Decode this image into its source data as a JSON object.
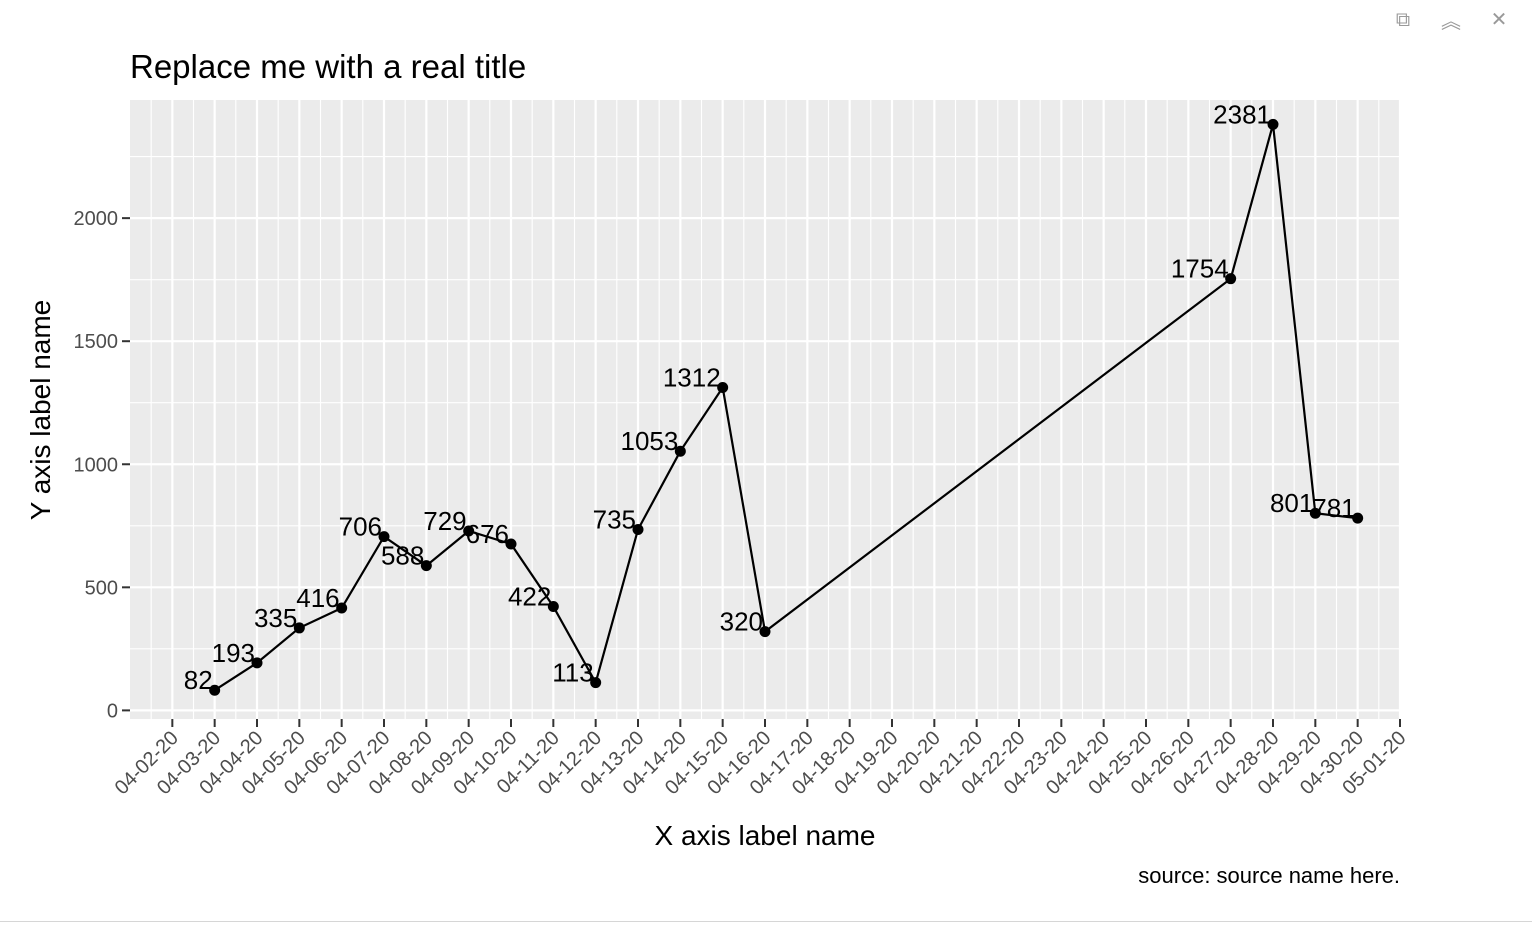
{
  "window": {
    "controls": [
      {
        "name": "popout-icon",
        "glyph": "⧉"
      },
      {
        "name": "collapse-icon",
        "glyph": "︽"
      },
      {
        "name": "close-icon",
        "glyph": "✕"
      }
    ]
  },
  "chart_data": {
    "type": "line",
    "title": "Replace me with a real title",
    "xlabel": "X axis label name",
    "ylabel": "Y axis label name",
    "caption": "source: source name here.",
    "x_ticks": [
      "04-02-20",
      "04-03-20",
      "04-04-20",
      "04-05-20",
      "04-06-20",
      "04-07-20",
      "04-08-20",
      "04-09-20",
      "04-10-20",
      "04-11-20",
      "04-12-20",
      "04-13-20",
      "04-14-20",
      "04-15-20",
      "04-16-20",
      "04-17-20",
      "04-18-20",
      "04-19-20",
      "04-20-20",
      "04-21-20",
      "04-22-20",
      "04-23-20",
      "04-24-20",
      "04-25-20",
      "04-26-20",
      "04-27-20",
      "04-28-20",
      "04-29-20",
      "04-30-20",
      "05-01-20"
    ],
    "y_ticks": [
      0,
      500,
      1000,
      1500,
      2000
    ],
    "xlim": [
      "2020-04-01",
      "2020-05-01"
    ],
    "ylim": [
      -35,
      2480
    ],
    "grid": true,
    "colors": {
      "panel": "#ebebeb",
      "grid": "#ffffff",
      "line": "#000000",
      "point": "#000000",
      "tick": "#4d4d4d"
    },
    "series": [
      {
        "points": [
          {
            "x": "2020-04-03",
            "y": 82
          },
          {
            "x": "2020-04-04",
            "y": 193
          },
          {
            "x": "2020-04-05",
            "y": 335
          },
          {
            "x": "2020-04-06",
            "y": 416
          },
          {
            "x": "2020-04-07",
            "y": 706
          },
          {
            "x": "2020-04-08",
            "y": 588
          },
          {
            "x": "2020-04-09",
            "y": 729
          },
          {
            "x": "2020-04-10",
            "y": 676
          },
          {
            "x": "2020-04-11",
            "y": 422
          },
          {
            "x": "2020-04-12",
            "y": 113
          },
          {
            "x": "2020-04-13",
            "y": 735
          },
          {
            "x": "2020-04-14",
            "y": 1053
          },
          {
            "x": "2020-04-15",
            "y": 1312
          },
          {
            "x": "2020-04-16",
            "y": 320
          },
          {
            "x": "2020-04-27",
            "y": 1754
          },
          {
            "x": "2020-04-28",
            "y": 2381
          },
          {
            "x": "2020-04-29",
            "y": 801
          },
          {
            "x": "2020-04-30",
            "y": 781
          }
        ]
      }
    ]
  }
}
